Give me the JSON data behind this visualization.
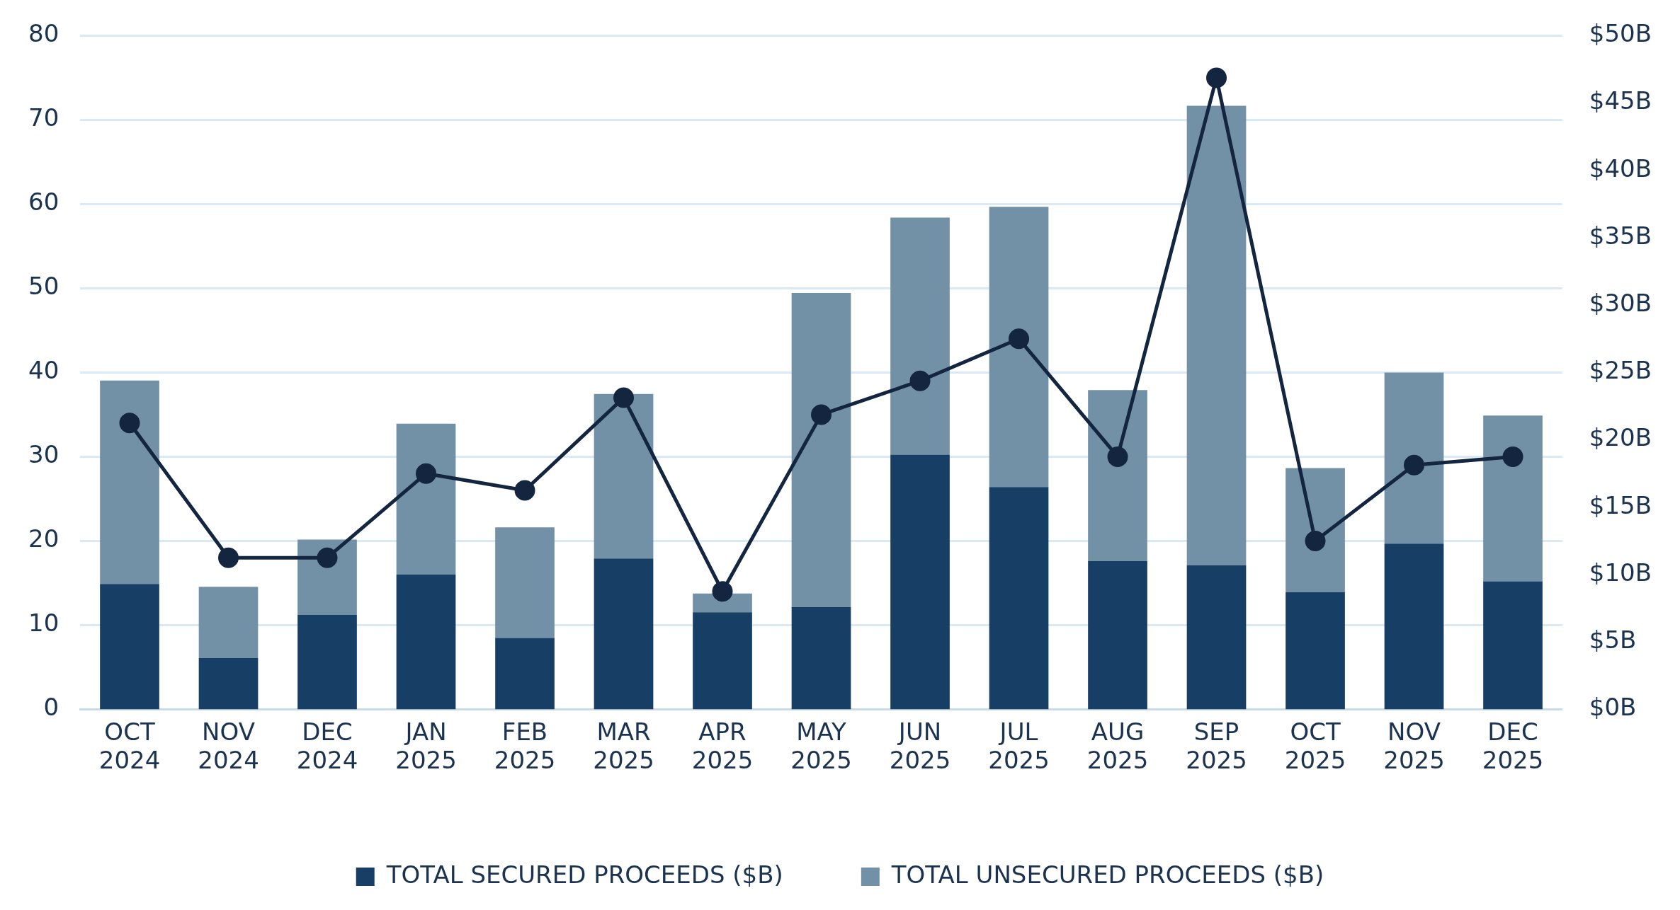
{
  "chart_data": {
    "type": "bar",
    "stacked": true,
    "categories": [
      "OCT 2024",
      "NOV 2024",
      "DEC 2024",
      "JAN 2025",
      "FEB 2025",
      "MAR 2025",
      "APR 2025",
      "MAY 2025",
      "JUN 2025",
      "JUL 2025",
      "AUG 2025",
      "SEP 2025",
      "OCT 2025",
      "NOV 2025",
      "DEC 2025"
    ],
    "series": [
      {
        "name": "TOTAL SECURED PROCEEDS ($B)",
        "color": "#173f66",
        "axis": "y2",
        "values": [
          9.3,
          3.8,
          7.0,
          10.0,
          5.3,
          11.2,
          7.2,
          7.6,
          18.9,
          16.5,
          11.0,
          10.7,
          8.7,
          12.3,
          9.5
        ]
      },
      {
        "name": "TOTAL UNSECURED PROCEEDS ($B)",
        "color": "#7391a6",
        "axis": "y2",
        "values": [
          15.1,
          5.3,
          5.6,
          11.2,
          8.2,
          12.2,
          1.4,
          23.3,
          17.6,
          20.8,
          12.7,
          34.1,
          9.2,
          12.7,
          12.3
        ]
      },
      {
        "type": "line",
        "color": "#13253f",
        "marker": "circle",
        "values": [
          34,
          18,
          18,
          28,
          26,
          37,
          14,
          35,
          39,
          44,
          30,
          75,
          20,
          29,
          30
        ]
      }
    ],
    "ylim": [
      0,
      80
    ],
    "yticks": [
      0,
      10,
      20,
      30,
      40,
      50,
      60,
      70,
      80
    ],
    "y2lim": [
      0,
      50
    ],
    "y2ticks": [
      {
        "value": 0,
        "label": "$0B"
      },
      {
        "value": 5,
        "label": "$5B"
      },
      {
        "value": 10,
        "label": "$10B"
      },
      {
        "value": 15,
        "label": "$15B"
      },
      {
        "value": 20,
        "label": "$20B"
      },
      {
        "value": 25,
        "label": "$25B"
      },
      {
        "value": 30,
        "label": "$30B"
      },
      {
        "value": 35,
        "label": "$35B"
      },
      {
        "value": 40,
        "label": "$40B"
      },
      {
        "value": 45,
        "label": "$45B"
      },
      {
        "value": 50,
        "label": "$50B"
      }
    ],
    "grid": "y",
    "legend": "bottom"
  }
}
